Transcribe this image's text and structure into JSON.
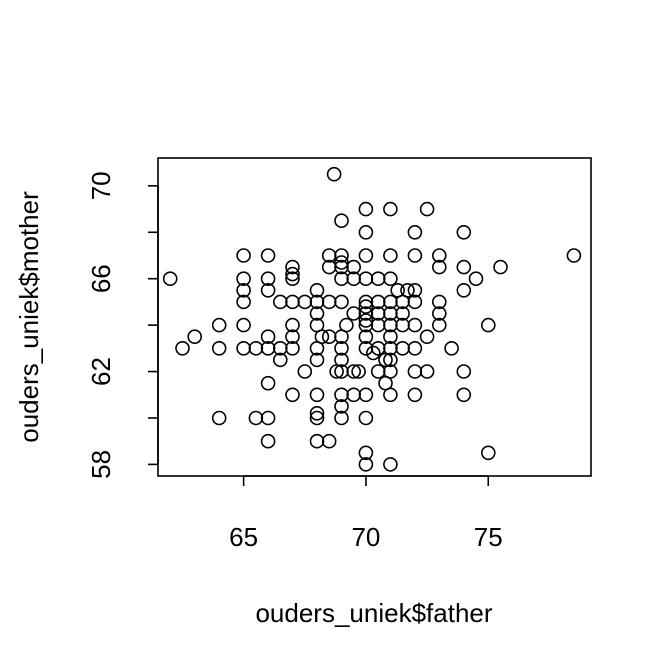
{
  "chart_data": {
    "type": "scatter",
    "title": "",
    "xlabel": "ouders_uniek$father",
    "ylabel": "ouders_uniek$mother",
    "xlim": [
      61.5,
      79.2
    ],
    "ylim": [
      57.5,
      71.2
    ],
    "xticks": [
      65,
      70,
      75
    ],
    "yticks": [
      58,
      60,
      62,
      64,
      66,
      68,
      70
    ],
    "ytick_labels": [
      "58",
      "",
      "62",
      "",
      "66",
      "",
      "70"
    ],
    "grid": false,
    "points": [
      [
        62.0,
        66.0
      ],
      [
        62.5,
        63.0
      ],
      [
        63.0,
        63.5
      ],
      [
        64.0,
        64.0
      ],
      [
        64.0,
        63.0
      ],
      [
        64.0,
        60.0
      ],
      [
        65.0,
        67.0
      ],
      [
        65.0,
        66.0
      ],
      [
        65.0,
        65.5
      ],
      [
        65.0,
        65.0
      ],
      [
        65.0,
        64.0
      ],
      [
        65.0,
        63.0
      ],
      [
        65.5,
        60.0
      ],
      [
        65.5,
        63.0
      ],
      [
        66.0,
        67.0
      ],
      [
        66.0,
        66.0
      ],
      [
        66.0,
        65.5
      ],
      [
        66.0,
        63.5
      ],
      [
        66.0,
        63.0
      ],
      [
        66.0,
        61.5
      ],
      [
        66.0,
        60.0
      ],
      [
        66.0,
        59.0
      ],
      [
        66.5,
        65.0
      ],
      [
        66.5,
        63.0
      ],
      [
        66.5,
        62.5
      ],
      [
        67.0,
        66.5
      ],
      [
        67.0,
        66.2
      ],
      [
        67.0,
        66.0
      ],
      [
        67.0,
        65.0
      ],
      [
        67.0,
        64.0
      ],
      [
        67.0,
        63.5
      ],
      [
        67.0,
        63.0
      ],
      [
        67.0,
        61.0
      ],
      [
        67.5,
        65.0
      ],
      [
        67.5,
        62.0
      ],
      [
        68.0,
        65.5
      ],
      [
        68.0,
        65.0
      ],
      [
        68.0,
        64.5
      ],
      [
        68.0,
        64.0
      ],
      [
        68.0,
        63.0
      ],
      [
        68.0,
        62.5
      ],
      [
        68.0,
        61.0
      ],
      [
        68.0,
        60.2
      ],
      [
        68.0,
        60.0
      ],
      [
        68.0,
        59.0
      ],
      [
        68.2,
        63.5
      ],
      [
        68.5,
        67.0
      ],
      [
        68.5,
        66.5
      ],
      [
        68.5,
        65.0
      ],
      [
        68.5,
        63.5
      ],
      [
        68.5,
        59.0
      ],
      [
        68.7,
        70.5
      ],
      [
        68.8,
        62.0
      ],
      [
        69.0,
        68.5
      ],
      [
        69.0,
        67.0
      ],
      [
        69.0,
        66.7
      ],
      [
        69.0,
        66.5
      ],
      [
        69.0,
        66.0
      ],
      [
        69.0,
        65.0
      ],
      [
        69.0,
        63.5
      ],
      [
        69.0,
        63.0
      ],
      [
        69.0,
        62.5
      ],
      [
        69.0,
        62.0
      ],
      [
        69.0,
        61.0
      ],
      [
        69.0,
        60.5
      ],
      [
        69.0,
        60.0
      ],
      [
        69.2,
        64.0
      ],
      [
        69.5,
        66.5
      ],
      [
        69.5,
        66.0
      ],
      [
        69.5,
        64.5
      ],
      [
        69.5,
        62.0
      ],
      [
        69.5,
        61.0
      ],
      [
        69.7,
        62.0
      ],
      [
        70.0,
        69.0
      ],
      [
        70.0,
        68.0
      ],
      [
        70.0,
        67.0
      ],
      [
        70.0,
        66.0
      ],
      [
        70.0,
        65.0
      ],
      [
        70.0,
        64.8
      ],
      [
        70.0,
        64.5
      ],
      [
        70.0,
        64.2
      ],
      [
        70.0,
        64.0
      ],
      [
        70.0,
        63.5
      ],
      [
        70.0,
        63.0
      ],
      [
        70.0,
        61.0
      ],
      [
        70.0,
        60.0
      ],
      [
        70.0,
        58.5
      ],
      [
        70.0,
        58.0
      ],
      [
        70.3,
        62.8
      ],
      [
        70.5,
        66.0
      ],
      [
        70.5,
        65.0
      ],
      [
        70.5,
        64.5
      ],
      [
        70.5,
        64.0
      ],
      [
        70.5,
        63.0
      ],
      [
        70.5,
        62.0
      ],
      [
        70.8,
        62.5
      ],
      [
        70.8,
        61.5
      ],
      [
        71.0,
        69.0
      ],
      [
        71.0,
        67.0
      ],
      [
        71.0,
        66.0
      ],
      [
        71.0,
        65.0
      ],
      [
        71.0,
        64.5
      ],
      [
        71.0,
        64.0
      ],
      [
        71.0,
        63.5
      ],
      [
        71.0,
        63.0
      ],
      [
        71.0,
        62.5
      ],
      [
        71.0,
        62.0
      ],
      [
        71.0,
        61.0
      ],
      [
        71.0,
        58.0
      ],
      [
        71.3,
        65.5
      ],
      [
        71.5,
        65.0
      ],
      [
        71.5,
        64.5
      ],
      [
        71.5,
        64.0
      ],
      [
        71.5,
        63.0
      ],
      [
        71.7,
        65.5
      ],
      [
        72.0,
        68.0
      ],
      [
        72.0,
        67.0
      ],
      [
        72.0,
        65.5
      ],
      [
        72.0,
        65.0
      ],
      [
        72.0,
        64.0
      ],
      [
        72.0,
        63.0
      ],
      [
        72.0,
        62.0
      ],
      [
        72.0,
        61.0
      ],
      [
        72.5,
        69.0
      ],
      [
        72.5,
        63.5
      ],
      [
        72.5,
        62.0
      ],
      [
        73.0,
        67.0
      ],
      [
        73.0,
        66.5
      ],
      [
        73.0,
        65.0
      ],
      [
        73.0,
        64.5
      ],
      [
        73.0,
        64.0
      ],
      [
        73.5,
        63.0
      ],
      [
        74.0,
        68.0
      ],
      [
        74.0,
        66.5
      ],
      [
        74.0,
        65.5
      ],
      [
        74.0,
        62.0
      ],
      [
        74.0,
        61.0
      ],
      [
        74.5,
        66.0
      ],
      [
        75.0,
        64.0
      ],
      [
        75.0,
        58.5
      ],
      [
        75.5,
        66.5
      ],
      [
        78.5,
        67.0
      ]
    ]
  }
}
